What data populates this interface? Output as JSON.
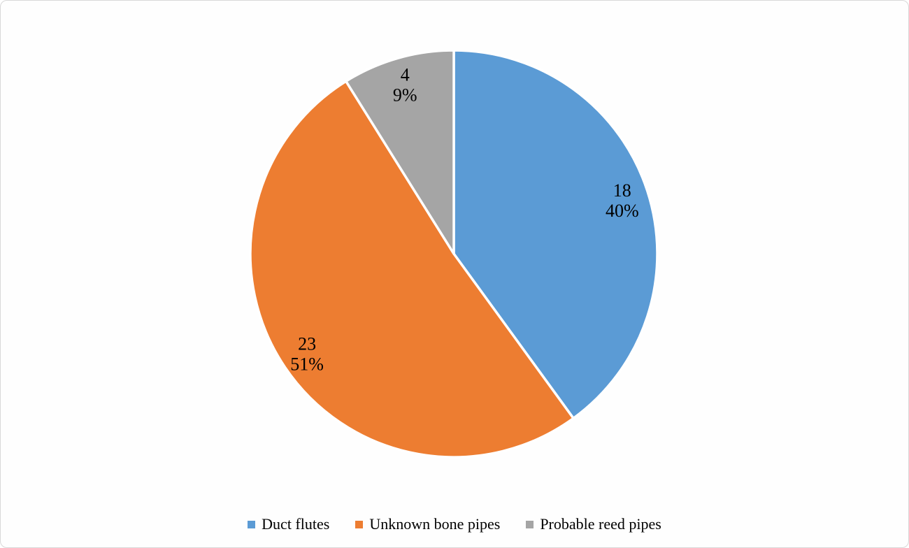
{
  "frame": {
    "background_color": "#FEFEFE",
    "border_color": "#D8D8D8"
  },
  "chart_data": {
    "type": "pie",
    "total": 45,
    "start_angle_deg": 0,
    "direction": "clockwise",
    "slice_border_color": "#FFFFFF",
    "label_color": "#000000",
    "legend_position": "bottom",
    "slices": [
      {
        "label": "Duct flutes",
        "value": 18,
        "percent": "40%",
        "color": "#5B9BD5"
      },
      {
        "label": "Unknown bone pipes",
        "value": 23,
        "percent": "51%",
        "color": "#ED7D31"
      },
      {
        "label": "Probable reed pipes",
        "value": 4,
        "percent": "9%",
        "color": "#A5A5A5"
      }
    ]
  }
}
